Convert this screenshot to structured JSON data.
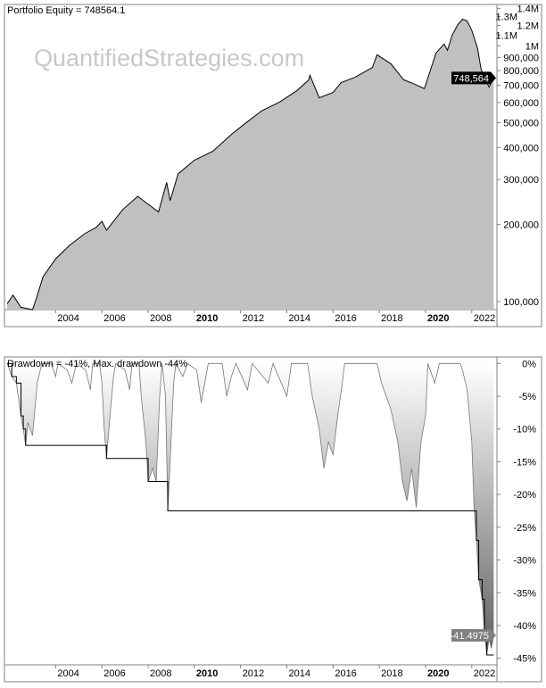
{
  "watermark": "QuantifiedStrategies.com",
  "chart_data": [
    {
      "type": "area",
      "title": "Portfolio Equity = 748564.1",
      "y_scale": "log",
      "ylim": [
        93000,
        1450000
      ],
      "xlim": [
        2001.9,
        2023.05
      ],
      "x_ticks": [
        {
          "label": "2004",
          "x": 2004,
          "bold": false
        },
        {
          "label": "2006",
          "x": 2006,
          "bold": false
        },
        {
          "label": "2008",
          "x": 2008,
          "bold": false
        },
        {
          "label": "2010",
          "x": 2010,
          "bold": true
        },
        {
          "label": "2012",
          "x": 2012,
          "bold": false
        },
        {
          "label": "2014",
          "x": 2014,
          "bold": false
        },
        {
          "label": "2016",
          "x": 2016,
          "bold": false
        },
        {
          "label": "2018",
          "x": 2018,
          "bold": false
        },
        {
          "label": "2020",
          "x": 2020,
          "bold": true
        },
        {
          "label": "2022",
          "x": 2022,
          "bold": false
        }
      ],
      "y_ticks": [
        {
          "label": "100,000",
          "v": 100000
        },
        {
          "label": "200,000",
          "v": 200000
        },
        {
          "label": "300,000",
          "v": 300000
        },
        {
          "label": "400,000",
          "v": 400000
        },
        {
          "label": "500,000",
          "v": 500000
        },
        {
          "label": "600,000",
          "v": 600000
        },
        {
          "label": "700,000",
          "v": 700000
        },
        {
          "label": "800,000",
          "v": 800000
        },
        {
          "label": "900,000",
          "v": 900000
        },
        {
          "label": "1M",
          "v": 1000000
        },
        {
          "label": "1.1M",
          "v": 1100000
        },
        {
          "label": "1.2M",
          "v": 1200000
        },
        {
          "label": "1.3M",
          "v": 1300000
        },
        {
          "label": "1.4M",
          "v": 1400000
        }
      ],
      "last_value_label": "748,564",
      "last_value": 748564,
      "colors": {
        "fill": "#c0c0c0",
        "line": "#000000",
        "label_bg": "#000000"
      },
      "points": [
        [
          2001.9,
          98000
        ],
        [
          2002.15,
          106000
        ],
        [
          2002.5,
          95000
        ],
        [
          2003.0,
          93000
        ],
        [
          2003.15,
          102000
        ],
        [
          2003.45,
          125000
        ],
        [
          2004.0,
          147000
        ],
        [
          2004.6,
          166000
        ],
        [
          2005.25,
          184000
        ],
        [
          2005.75,
          195000
        ],
        [
          2006.0,
          206000
        ],
        [
          2006.2,
          190000
        ],
        [
          2006.9,
          229000
        ],
        [
          2007.55,
          258000
        ],
        [
          2007.95,
          242000
        ],
        [
          2008.45,
          224000
        ],
        [
          2008.8,
          292000
        ],
        [
          2008.95,
          248000
        ],
        [
          2009.3,
          316000
        ],
        [
          2010.0,
          357000
        ],
        [
          2010.8,
          387000
        ],
        [
          2011.65,
          454000
        ],
        [
          2012.15,
          493000
        ],
        [
          2012.9,
          556000
        ],
        [
          2013.7,
          603000
        ],
        [
          2014.45,
          669000
        ],
        [
          2014.95,
          736000
        ],
        [
          2015.0,
          767000
        ],
        [
          2015.4,
          626000
        ],
        [
          2016.0,
          657000
        ],
        [
          2016.35,
          718000
        ],
        [
          2016.95,
          753000
        ],
        [
          2017.7,
          822000
        ],
        [
          2017.9,
          922000
        ],
        [
          2018.5,
          851000
        ],
        [
          2019.05,
          736000
        ],
        [
          2019.45,
          713000
        ],
        [
          2019.95,
          680000
        ],
        [
          2020.2,
          797000
        ],
        [
          2020.45,
          935000
        ],
        [
          2020.8,
          1016000
        ],
        [
          2020.95,
          960000
        ],
        [
          2021.15,
          1100000
        ],
        [
          2021.4,
          1210000
        ],
        [
          2021.6,
          1270000
        ],
        [
          2021.8,
          1250000
        ],
        [
          2022.0,
          1150000
        ],
        [
          2022.25,
          977000
        ],
        [
          2022.4,
          810000
        ],
        [
          2022.55,
          750000
        ],
        [
          2022.75,
          690000
        ],
        [
          2022.95,
          748564
        ]
      ]
    },
    {
      "type": "area",
      "title": "Drawdown = -41%, Max. drawdown -44%",
      "ylim": [
        -46,
        1
      ],
      "xlim": [
        2001.9,
        2023.05
      ],
      "y_ticks": [
        {
          "label": "0%",
          "v": 0
        },
        {
          "label": "-5%",
          "v": -5
        },
        {
          "label": "-10%",
          "v": -10
        },
        {
          "label": "-15%",
          "v": -15
        },
        {
          "label": "-20%",
          "v": -20
        },
        {
          "label": "-25%",
          "v": -25
        },
        {
          "label": "-30%",
          "v": -30
        },
        {
          "label": "-35%",
          "v": -35
        },
        {
          "label": "-40%",
          "v": -40
        },
        {
          "label": "-45%",
          "v": -45
        }
      ],
      "last_value_label": "-41.4975",
      "last_value": -41.4975,
      "colors": {
        "fill_top": "#ffffff",
        "fill_bottom": "#606060",
        "line": "#000000",
        "label_bg": "#808080"
      },
      "points": [
        [
          2001.9,
          0
        ],
        [
          2002.1,
          -2
        ],
        [
          2002.3,
          -3
        ],
        [
          2002.5,
          -8
        ],
        [
          2002.6,
          -10
        ],
        [
          2002.7,
          -12.5
        ],
        [
          2002.8,
          -9
        ],
        [
          2003.0,
          -11
        ],
        [
          2003.2,
          -3
        ],
        [
          2003.4,
          0
        ],
        [
          2003.8,
          0
        ],
        [
          2004.0,
          -2
        ],
        [
          2004.1,
          0
        ],
        [
          2004.5,
          -1
        ],
        [
          2004.7,
          -3
        ],
        [
          2004.9,
          0
        ],
        [
          2005.3,
          -1
        ],
        [
          2005.5,
          -4
        ],
        [
          2005.6,
          0
        ],
        [
          2005.9,
          0
        ],
        [
          2006.0,
          -3
        ],
        [
          2006.1,
          -10
        ],
        [
          2006.2,
          -14.5
        ],
        [
          2006.35,
          -8
        ],
        [
          2006.5,
          -2
        ],
        [
          2006.6,
          0
        ],
        [
          2007.0,
          -1
        ],
        [
          2007.2,
          -4
        ],
        [
          2007.3,
          0
        ],
        [
          2007.6,
          0
        ],
        [
          2007.7,
          -5
        ],
        [
          2007.9,
          -12
        ],
        [
          2008.0,
          -18
        ],
        [
          2008.2,
          -16
        ],
        [
          2008.35,
          -18
        ],
        [
          2008.5,
          -5
        ],
        [
          2008.6,
          0
        ],
        [
          2008.75,
          -5
        ],
        [
          2008.85,
          -22.5
        ],
        [
          2008.95,
          -15
        ],
        [
          2009.1,
          -3
        ],
        [
          2009.2,
          0
        ],
        [
          2009.5,
          -2
        ],
        [
          2009.7,
          0
        ],
        [
          2010.1,
          -1
        ],
        [
          2010.3,
          -6
        ],
        [
          2010.5,
          -2
        ],
        [
          2010.6,
          0
        ],
        [
          2011.2,
          0
        ],
        [
          2011.4,
          -5
        ],
        [
          2011.6,
          -2
        ],
        [
          2011.8,
          0
        ],
        [
          2012.3,
          -4
        ],
        [
          2012.5,
          0
        ],
        [
          2013.2,
          -3
        ],
        [
          2013.4,
          0
        ],
        [
          2014.0,
          -5
        ],
        [
          2014.2,
          0
        ],
        [
          2014.9,
          0
        ],
        [
          2015.1,
          -5
        ],
        [
          2015.4,
          -10
        ],
        [
          2015.6,
          -16
        ],
        [
          2015.8,
          -12
        ],
        [
          2016.0,
          -14
        ],
        [
          2016.2,
          -8
        ],
        [
          2016.4,
          -3
        ],
        [
          2016.5,
          0
        ],
        [
          2017.9,
          0
        ],
        [
          2018.1,
          -3
        ],
        [
          2018.5,
          -7
        ],
        [
          2018.8,
          -12
        ],
        [
          2019.0,
          -18
        ],
        [
          2019.2,
          -21
        ],
        [
          2019.4,
          -16
        ],
        [
          2019.6,
          -22
        ],
        [
          2019.8,
          -12
        ],
        [
          2020.0,
          -8
        ],
        [
          2020.1,
          0
        ],
        [
          2020.4,
          -3
        ],
        [
          2020.6,
          0
        ],
        [
          2021.5,
          0
        ],
        [
          2021.6,
          -1
        ],
        [
          2021.8,
          -4
        ],
        [
          2022.0,
          -12
        ],
        [
          2022.1,
          -22
        ],
        [
          2022.2,
          -27
        ],
        [
          2022.3,
          -33
        ],
        [
          2022.45,
          -36
        ],
        [
          2022.55,
          -41
        ],
        [
          2022.65,
          -44.5
        ],
        [
          2022.75,
          -42
        ],
        [
          2022.85,
          -43.5
        ],
        [
          2022.95,
          -41.4975
        ]
      ]
    }
  ]
}
